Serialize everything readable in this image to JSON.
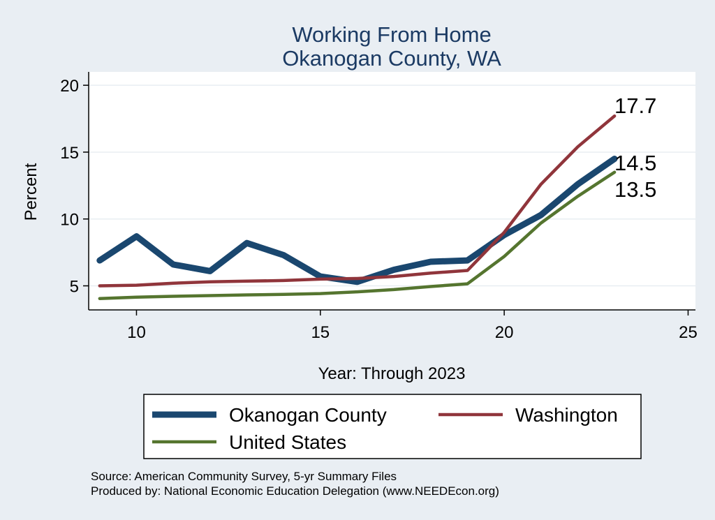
{
  "chart_data": {
    "type": "line",
    "title": "Working From Home",
    "subtitle": "Okanogan County, WA",
    "xlabel": "Year: Through 2023",
    "ylabel": "Percent",
    "xlim": [
      8.7,
      25.2
    ],
    "ylim": [
      3.2,
      21
    ],
    "xticks": [
      10,
      15,
      20,
      25
    ],
    "yticks": [
      5,
      10,
      15,
      20
    ],
    "grid": true,
    "series": [
      {
        "name": "Okanogan County",
        "color": "#1a476f",
        "x": [
          9,
          10,
          11,
          12,
          13,
          14,
          15,
          16,
          17,
          18,
          19,
          20,
          21,
          22,
          23
        ],
        "values": [
          6.9,
          8.7,
          6.6,
          6.1,
          8.2,
          7.3,
          5.7,
          5.3,
          6.2,
          6.8,
          6.9,
          8.8,
          10.3,
          12.6,
          14.5
        ]
      },
      {
        "name": "Washington",
        "color": "#90353b",
        "x": [
          9,
          10,
          11,
          12,
          13,
          14,
          15,
          16,
          17,
          18,
          19,
          20,
          21,
          22,
          23
        ],
        "values": [
          5.0,
          5.05,
          5.2,
          5.3,
          5.35,
          5.4,
          5.5,
          5.55,
          5.7,
          5.95,
          6.15,
          9.0,
          12.6,
          15.4,
          17.7
        ]
      },
      {
        "name": "United States",
        "color": "#55752f",
        "x": [
          9,
          10,
          11,
          12,
          13,
          14,
          15,
          16,
          17,
          18,
          19,
          20,
          21,
          22,
          23
        ],
        "values": [
          4.05,
          4.15,
          4.22,
          4.27,
          4.32,
          4.36,
          4.42,
          4.55,
          4.72,
          4.95,
          5.15,
          7.2,
          9.7,
          11.7,
          13.5
        ]
      }
    ],
    "end_labels": [
      "14.5",
      "17.7",
      "13.5"
    ],
    "legend_position": "bottom",
    "notes": [
      "Source: American Community Survey, 5-yr Summary Files",
      "Produced by: National Economic Education Delegation (www.NEEDEcon.org)"
    ]
  }
}
